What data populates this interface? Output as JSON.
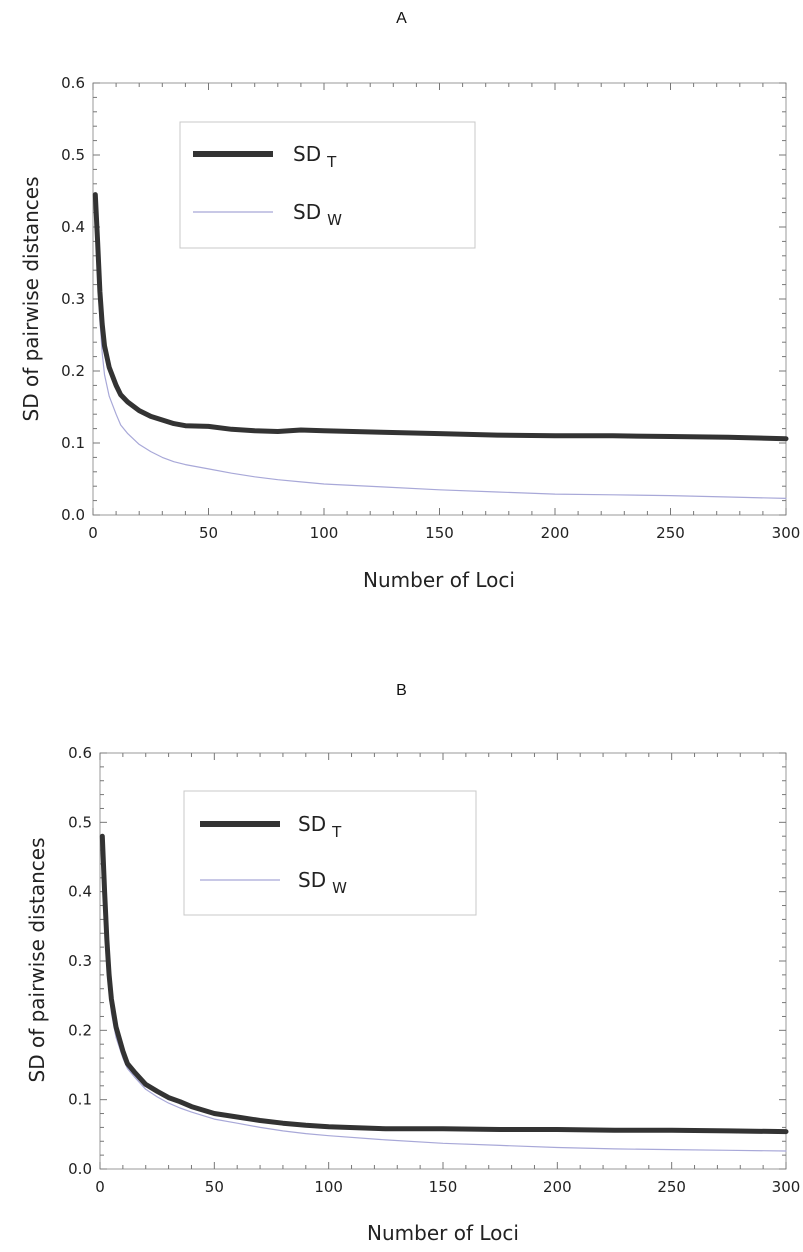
{
  "chart_data": [
    {
      "panel": "A",
      "type": "line",
      "xlabel": "Number of Loci",
      "ylabel": "SD  of pairwise distances",
      "xlim": [
        0,
        300
      ],
      "ylim": [
        0,
        0.6
      ],
      "xticks": [
        "0",
        "50",
        "100",
        "150",
        "200",
        "250",
        "300"
      ],
      "yticks": [
        "0.0",
        "0.1",
        "0.2",
        "0.3",
        "0.4",
        "0.5",
        "0.6"
      ],
      "legend_position": "top-left",
      "series": [
        {
          "name": "SD",
          "subscript": "T",
          "color": "#333333",
          "points": [
            [
              1,
              0.445
            ],
            [
              2,
              0.38
            ],
            [
              3,
              0.31
            ],
            [
              4,
              0.265
            ],
            [
              5,
              0.235
            ],
            [
              7,
              0.205
            ],
            [
              10,
              0.18
            ],
            [
              12,
              0.167
            ],
            [
              15,
              0.157
            ],
            [
              20,
              0.145
            ],
            [
              25,
              0.137
            ],
            [
              30,
              0.132
            ],
            [
              35,
              0.127
            ],
            [
              40,
              0.124
            ],
            [
              50,
              0.123
            ],
            [
              60,
              0.119
            ],
            [
              70,
              0.117
            ],
            [
              80,
              0.116
            ],
            [
              90,
              0.118
            ],
            [
              100,
              0.117
            ],
            [
              125,
              0.115
            ],
            [
              150,
              0.113
            ],
            [
              175,
              0.111
            ],
            [
              200,
              0.11
            ],
            [
              225,
              0.11
            ],
            [
              250,
              0.109
            ],
            [
              275,
              0.108
            ],
            [
              300,
              0.106
            ]
          ]
        },
        {
          "name": "SD",
          "subscript": "W",
          "color": "#a8a8d8",
          "points": [
            [
              1,
              0.42
            ],
            [
              2,
              0.34
            ],
            [
              3,
              0.27
            ],
            [
              4,
              0.225
            ],
            [
              5,
              0.195
            ],
            [
              7,
              0.165
            ],
            [
              10,
              0.14
            ],
            [
              12,
              0.125
            ],
            [
              15,
              0.113
            ],
            [
              20,
              0.098
            ],
            [
              25,
              0.088
            ],
            [
              30,
              0.08
            ],
            [
              35,
              0.074
            ],
            [
              40,
              0.07
            ],
            [
              50,
              0.064
            ],
            [
              60,
              0.058
            ],
            [
              70,
              0.053
            ],
            [
              80,
              0.049
            ],
            [
              90,
              0.046
            ],
            [
              100,
              0.043
            ],
            [
              125,
              0.039
            ],
            [
              150,
              0.035
            ],
            [
              175,
              0.032
            ],
            [
              200,
              0.029
            ],
            [
              225,
              0.028
            ],
            [
              250,
              0.027
            ],
            [
              275,
              0.025
            ],
            [
              300,
              0.023
            ]
          ]
        }
      ]
    },
    {
      "panel": "B",
      "type": "line",
      "xlabel": "Number of Loci",
      "ylabel": "SD  of pairwise distances",
      "xlim": [
        0,
        300
      ],
      "ylim": [
        0,
        0.6
      ],
      "xticks": [
        "0",
        "50",
        "100",
        "150",
        "200",
        "250",
        "300"
      ],
      "yticks": [
        "0.0",
        "0.1",
        "0.2",
        "0.3",
        "0.4",
        "0.5",
        "0.6"
      ],
      "legend_position": "top-left",
      "series": [
        {
          "name": "SD",
          "subscript": "T",
          "color": "#333333",
          "points": [
            [
              1,
              0.48
            ],
            [
              2,
              0.4
            ],
            [
              3,
              0.33
            ],
            [
              4,
              0.28
            ],
            [
              5,
              0.245
            ],
            [
              7,
              0.205
            ],
            [
              10,
              0.17
            ],
            [
              12,
              0.152
            ],
            [
              15,
              0.14
            ],
            [
              20,
              0.122
            ],
            [
              25,
              0.112
            ],
            [
              30,
              0.103
            ],
            [
              35,
              0.097
            ],
            [
              40,
              0.09
            ],
            [
              50,
              0.08
            ],
            [
              60,
              0.075
            ],
            [
              70,
              0.07
            ],
            [
              80,
              0.066
            ],
            [
              90,
              0.063
            ],
            [
              100,
              0.061
            ],
            [
              125,
              0.058
            ],
            [
              150,
              0.058
            ],
            [
              175,
              0.057
            ],
            [
              200,
              0.057
            ],
            [
              225,
              0.056
            ],
            [
              250,
              0.056
            ],
            [
              275,
              0.055
            ],
            [
              300,
              0.054
            ]
          ]
        },
        {
          "name": "SD",
          "subscript": "W",
          "color": "#a8a8d8",
          "points": [
            [
              1,
              0.46
            ],
            [
              2,
              0.38
            ],
            [
              3,
              0.31
            ],
            [
              4,
              0.26
            ],
            [
              5,
              0.225
            ],
            [
              7,
              0.19
            ],
            [
              10,
              0.16
            ],
            [
              12,
              0.145
            ],
            [
              15,
              0.133
            ],
            [
              20,
              0.115
            ],
            [
              25,
              0.104
            ],
            [
              30,
              0.095
            ],
            [
              35,
              0.088
            ],
            [
              40,
              0.082
            ],
            [
              50,
              0.072
            ],
            [
              60,
              0.066
            ],
            [
              70,
              0.06
            ],
            [
              80,
              0.055
            ],
            [
              90,
              0.051
            ],
            [
              100,
              0.048
            ],
            [
              125,
              0.042
            ],
            [
              150,
              0.037
            ],
            [
              175,
              0.034
            ],
            [
              200,
              0.031
            ],
            [
              225,
              0.029
            ],
            [
              250,
              0.028
            ],
            [
              275,
              0.027
            ],
            [
              300,
              0.026
            ]
          ]
        }
      ]
    }
  ]
}
